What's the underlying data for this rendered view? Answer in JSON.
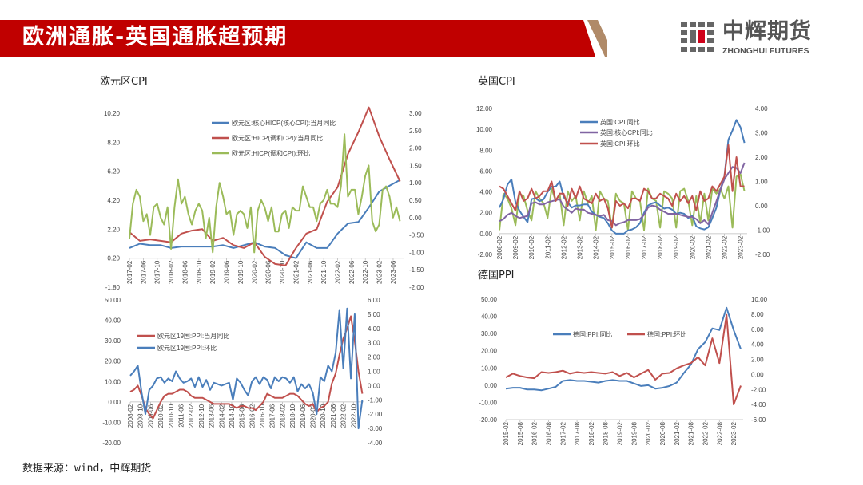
{
  "header": {
    "title": "欧洲通胀-英国通胀超预期",
    "brand_color": "#c00000",
    "accent_color": "#b08a68"
  },
  "logo": {
    "cn": "中辉期货",
    "en": "ZHONGHUI FUTURES"
  },
  "footer": {
    "source": "数据来源：wind，中辉期货"
  },
  "chart_data": [
    {
      "id": "ez-cpi",
      "type": "line",
      "title": "欧元区CPI",
      "xlim": [
        2017.083,
        2023.667
      ],
      "x_axis_crosses": 0.2,
      "ylim_left": [
        -1.8,
        10.2
      ],
      "ylim_right": [
        -2,
        3
      ],
      "yticks_left": [
        "10.20",
        "8.20",
        "6.20",
        "4.20",
        "2.20",
        "0.20",
        "-1.80"
      ],
      "yticks_right": [
        "3.00",
        "2.50",
        "2.00",
        "1.50",
        "1.00",
        "0.50",
        "0.00",
        "-0.50",
        "-1.00",
        "-1.50",
        "-2.00"
      ],
      "xticks": [
        "2017-02",
        "2017-06",
        "2017-10",
        "2018-02",
        "2018-06",
        "2018-10",
        "2019-02",
        "2019-06",
        "2019-10",
        "2020-02",
        "2020-06",
        "2020-10",
        "2021-02",
        "2021-06",
        "2021-10",
        "2022-02",
        "2022-06",
        "2022-10",
        "2023-02",
        "2023-06"
      ],
      "legend": "top-center",
      "series": [
        {
          "name": "欧元区:核心HICP(核心CPI):当月同比",
          "axis": "left",
          "color": "#4a7ebb",
          "start": 2017.083,
          "step": 0.25,
          "values": [
            0.9,
            1.2,
            1.1,
            1.1,
            0.9,
            1.0,
            1.0,
            1.0,
            1.0,
            1.1,
            0.9,
            1.1,
            1.3,
            1.0,
            0.9,
            0.4,
            0.2,
            1.3,
            0.9,
            0.9,
            1.9,
            2.6,
            2.7,
            3.7,
            4.8,
            5.2,
            5.6
          ]
        },
        {
          "name": "欧元区:HICP(调和CPI):当月同比",
          "axis": "left",
          "color": "#c0504d",
          "start": 2017.083,
          "step": 0.25,
          "values": [
            2.0,
            1.4,
            1.5,
            1.4,
            1.3,
            1.9,
            2.1,
            2.2,
            1.4,
            1.6,
            1.1,
            0.9,
            1.3,
            0.3,
            -0.2,
            -0.3,
            0.9,
            1.9,
            2.2,
            4.1,
            5.1,
            7.4,
            8.9,
            10.6,
            8.6,
            7.0,
            5.5
          ]
        },
        {
          "name": "欧元区:HICP(调和CPI):环比",
          "axis": "right",
          "color": "#9bbb59",
          "start": 2017.083,
          "step": 0.0833,
          "values": [
            -0.6,
            0.4,
            0.8,
            0.6,
            -0.1,
            0.1,
            -0.5,
            0.3,
            0.4,
            0.0,
            -0.2,
            0.3,
            -0.9,
            0.3,
            1.1,
            0.4,
            0.6,
            0.1,
            -0.2,
            0.2,
            0.4,
            0.2,
            -0.6,
            0.0,
            -1.0,
            0.3,
            1.0,
            0.6,
            0.1,
            0.2,
            -0.5,
            0.1,
            0.2,
            0.1,
            -0.3,
            0.3,
            -1.0,
            0.2,
            0.5,
            0.3,
            -0.1,
            0.3,
            -0.4,
            -0.4,
            0.1,
            0.2,
            -0.3,
            0.3,
            0.2,
            0.2,
            0.9,
            0.6,
            0.3,
            0.3,
            -0.1,
            0.4,
            0.5,
            0.8,
            0.4,
            0.4,
            0.3,
            0.9,
            2.4,
            0.6,
            0.8,
            0.8,
            0.1,
            0.6,
            1.2,
            1.5,
            -0.1,
            -0.4,
            -0.2,
            0.8,
            0.9,
            0.6,
            0.0,
            0.3,
            -0.1
          ]
        }
      ]
    },
    {
      "id": "uk-cpi",
      "type": "line",
      "title": "英国CPI",
      "xlim": [
        2008.083,
        2023.5
      ],
      "x_axis_crosses": 0,
      "ylim_left": [
        -2,
        12
      ],
      "ylim_right": [
        -2,
        4
      ],
      "yticks_left": [
        "12.00",
        "10.00",
        "8.00",
        "6.00",
        "4.00",
        "2.00",
        "0.00",
        "-2.00"
      ],
      "yticks_right": [
        "4.00",
        "3.00",
        "2.00",
        "1.00",
        "0.00",
        "-1.00",
        "-2.00"
      ],
      "xticks": [
        "2008-02",
        "2009-02",
        "2010-02",
        "2011-02",
        "2012-02",
        "2013-02",
        "2014-02",
        "2015-02",
        "2016-02",
        "2017-02",
        "2018-02",
        "2019-02",
        "2020-02",
        "2021-02",
        "2022-02",
        "2023-02"
      ],
      "legend": "top-center",
      "series": [
        {
          "name": "",
          "axis": "right",
          "color": "#9bbb59",
          "start": 2008.083,
          "step": 0.25,
          "values": [
            -1.0,
            0.5,
            0.3,
            -0.1,
            -0.8,
            0.5,
            0.4,
            -0.2,
            -0.6,
            0.6,
            0.3,
            0.1,
            -0.5,
            0.7,
            0.2,
            0.5,
            -0.8,
            0.6,
            0.2,
            0.4,
            -0.6,
            0.6,
            0.1,
            0.4,
            -1.0,
            0.6,
            0.3,
            0.2,
            -0.9,
            0.5,
            0.2,
            0.1,
            -1.0,
            0.6,
            0.3,
            0.2,
            -1.0,
            0.7,
            0.3,
            0.2,
            -0.9,
            0.6,
            0.5,
            0.3,
            -0.9,
            0.6,
            0.7,
            0.2,
            -0.8,
            0.4,
            -0.7,
            0.5,
            -0.6,
            0.7,
            0.5,
            0.7,
            0.3,
            0.8,
            -0.9,
            1.2,
            1.3,
            0.6,
            0.3
          ]
        },
        {
          "name": "英国:CPI:同比",
          "axis": "left",
          "color": "#4a7ebb",
          "start": 2008.083,
          "step": 0.25,
          "values": [
            2.5,
            3.3,
            4.7,
            5.2,
            3.0,
            2.2,
            1.6,
            1.1,
            3.3,
            3.4,
            3.1,
            3.3,
            4.0,
            4.5,
            4.5,
            5.0,
            3.5,
            3.0,
            2.5,
            2.7,
            2.7,
            2.8,
            2.8,
            2.1,
            1.8,
            1.6,
            1.5,
            1.0,
            0.3,
            0.0,
            0.0,
            0.0,
            0.3,
            0.4,
            0.6,
            1.0,
            2.0,
            2.7,
            2.9,
            3.0,
            2.7,
            2.4,
            2.5,
            2.3,
            1.9,
            2.0,
            1.9,
            1.5,
            1.7,
            0.7,
            0.5,
            0.4,
            0.6,
            1.5,
            2.5,
            4.2,
            5.5,
            9.0,
            9.9,
            10.9,
            10.2,
            8.7,
            7.9
          ]
        },
        {
          "name": "英国:核心CPI:同比",
          "axis": "left",
          "color": "#8064a2",
          "start": 2008.083,
          "step": 0.25,
          "values": [
            1.2,
            1.4,
            1.8,
            2.0,
            1.7,
            1.5,
            1.6,
            1.7,
            2.9,
            3.0,
            2.8,
            2.8,
            3.0,
            3.1,
            3.2,
            3.3,
            2.6,
            2.3,
            2.0,
            2.4,
            2.3,
            2.3,
            2.0,
            1.9,
            1.8,
            1.7,
            1.8,
            1.3,
            1.2,
            0.8,
            1.0,
            1.1,
            1.3,
            1.3,
            1.3,
            1.4,
            1.8,
            2.5,
            2.7,
            2.6,
            2.3,
            2.1,
            1.9,
            1.9,
            1.9,
            1.8,
            1.7,
            1.6,
            1.6,
            1.4,
            1.0,
            1.3,
            0.9,
            2.0,
            3.1,
            4.2,
            5.2,
            5.8,
            6.4,
            6.3,
            5.8,
            6.8,
            7.1
          ]
        },
        {
          "name": "英国:CPI:环比",
          "axis": "right",
          "color": "#c0504d",
          "start": 2008.083,
          "step": 0.25,
          "values": [
            0.8,
            0.7,
            0.4,
            0.1,
            -0.2,
            0.6,
            0.2,
            0.3,
            0.7,
            0.3,
            0.4,
            0.6,
            0.6,
            1.0,
            0.2,
            0.5,
            0.5,
            0.0,
            0.7,
            0.3,
            0.8,
            0.3,
            0.2,
            0.1,
            0.5,
            0.2,
            0.3,
            -0.1,
            -0.9,
            0.2,
            0.0,
            0.1,
            -0.1,
            0.3,
            0.3,
            0.2,
            0.7,
            0.6,
            0.3,
            0.3,
            0.5,
            0.4,
            0.3,
            0.0,
            0.5,
            0.2,
            0.4,
            0.1,
            0.4,
            -0.2,
            0.6,
            0.2,
            0.3,
            0.8,
            0.6,
            0.9,
            1.2,
            2.5,
            0.6,
            2.0,
            0.8,
            0.8,
            -0.4
          ]
        }
      ]
    },
    {
      "id": "ez-ppi",
      "type": "line",
      "title": "",
      "xlim": [
        2008.083,
        2023.417
      ],
      "x_axis_crosses": 0,
      "ylim_left": [
        -20,
        50
      ],
      "ylim_right": [
        -4,
        6
      ],
      "yticks_left": [
        "50.00",
        "40.00",
        "30.00",
        "20.00",
        "10.00",
        "0.00",
        "-10.00",
        "-20.00"
      ],
      "yticks_right": [
        "6.00",
        "5.00",
        "4.00",
        "3.00",
        "2.00",
        "1.00",
        "0.00",
        "-1.00",
        "-2.00",
        "-3.00",
        "-4.00"
      ],
      "xticks": [
        "2008-02",
        "2008-10",
        "2009-06",
        "2010-02",
        "2010-10",
        "2011-06",
        "2012-02",
        "2012-10",
        "2013-06",
        "2014-02",
        "2014-10",
        "2015-06",
        "2016-02",
        "2016-10",
        "2017-06",
        "2018-02",
        "2018-10",
        "2019-06",
        "2020-02",
        "2020-10",
        "2021-06",
        "2022-02",
        "2022-10"
      ],
      "legend": "top-left",
      "series": [
        {
          "name": "欧元区19国:PPI:当月同比",
          "axis": "left",
          "color": "#c0504d",
          "start": 2008.083,
          "step": 0.25,
          "values": [
            5,
            6,
            8,
            3,
            -3,
            -6,
            -8,
            -4,
            0,
            3,
            4,
            4,
            5,
            6,
            6,
            5,
            3,
            2,
            2,
            2,
            1,
            0,
            -1,
            -1,
            -1,
            -1,
            -1,
            -2,
            -3,
            -2,
            -2,
            -3,
            -3,
            -4,
            -2,
            0,
            4,
            3,
            2,
            2,
            2,
            3,
            4,
            4,
            3,
            1,
            -1,
            -2,
            -1,
            -5,
            -3,
            -2,
            0,
            9,
            14,
            23,
            31,
            36,
            42,
            30,
            15,
            4,
            -2
          ]
        },
        {
          "name": "欧元区19国:PPI:环比",
          "axis": "right",
          "color": "#4a7ebb",
          "start": 2008.083,
          "step": 0.25,
          "values": [
            0.7,
            1.0,
            1.4,
            -0.5,
            -2.0,
            -0.3,
            0.0,
            0.5,
            0.6,
            0.2,
            0.5,
            0.3,
            1.0,
            0.5,
            0.2,
            0.3,
            0.5,
            -0.1,
            0.6,
            -0.1,
            0.4,
            -0.3,
            0.2,
            0.1,
            0.0,
            0.1,
            0.2,
            -1.0,
            0.5,
            0.2,
            -0.3,
            -0.7,
            0.3,
            0.6,
            0.1,
            0.6,
            0.4,
            -0.2,
            0.6,
            0.3,
            0.6,
            0.5,
            0.2,
            0.6,
            -0.4,
            0.1,
            -0.2,
            0.1,
            -0.5,
            -2.0,
            0.6,
            0.3,
            1.4,
            1.0,
            2.3,
            5.3,
            1.2,
            5.4,
            0.5,
            5.0,
            -3.0,
            -1.0,
            -3.2
          ]
        }
      ]
    },
    {
      "id": "de-ppi",
      "type": "line",
      "title": "德国PPI",
      "xlim": [
        2015.083,
        2023.417
      ],
      "x_axis_crosses": -20,
      "ylim_left": [
        -20,
        50
      ],
      "ylim_right": [
        -6,
        10
      ],
      "yticks_left": [
        "50.00",
        "40.00",
        "30.00",
        "20.00",
        "10.00",
        "0.00",
        "-10.00",
        "-20.00"
      ],
      "yticks_right": [
        "10.00",
        "8.00",
        "6.00",
        "4.00",
        "2.00",
        "0.00",
        "-2.00",
        "-4.00",
        "-6.00"
      ],
      "xticks": [
        "2015-02",
        "2015-08",
        "2016-02",
        "2016-08",
        "2017-02",
        "2017-08",
        "2018-02",
        "2018-08",
        "2019-02",
        "2019-08",
        "2020-02",
        "2020-08",
        "2021-02",
        "2021-08",
        "2022-02",
        "2022-08",
        "2023-02"
      ],
      "legend": "top-center",
      "series": [
        {
          "name": "德国:PPI:同比",
          "axis": "left",
          "color": "#4a7ebb",
          "start": 2015.083,
          "step": 0.25,
          "values": [
            -2,
            -1.5,
            -1.5,
            -2.5,
            -2.5,
            -3,
            -2,
            -1,
            2.5,
            3,
            2.5,
            2.5,
            2,
            1.5,
            2.5,
            3,
            2.5,
            2.5,
            1,
            -0.5,
            0,
            -2,
            -1.5,
            -0.5,
            1.5,
            7,
            12,
            21,
            25,
            33,
            32,
            45,
            32,
            21,
            5,
            1
          ]
        },
        {
          "name": "德国:PPI:环比",
          "axis": "right",
          "color": "#c0504d",
          "start": 2015.083,
          "step": 0.25,
          "values": [
            -0.4,
            0.1,
            -0.2,
            -0.4,
            -0.5,
            0.3,
            0.2,
            0.3,
            0.5,
            0.1,
            0.3,
            0.2,
            0.3,
            0.2,
            0.1,
            0.3,
            -0.2,
            0.2,
            -0.4,
            0.1,
            0.6,
            -0.7,
            0.1,
            0.2,
            0.8,
            1.2,
            1.5,
            2.3,
            1.2,
            4.8,
            1.5,
            7.9,
            -4.0,
            -1.5,
            0.2,
            -1.4
          ]
        }
      ]
    }
  ]
}
